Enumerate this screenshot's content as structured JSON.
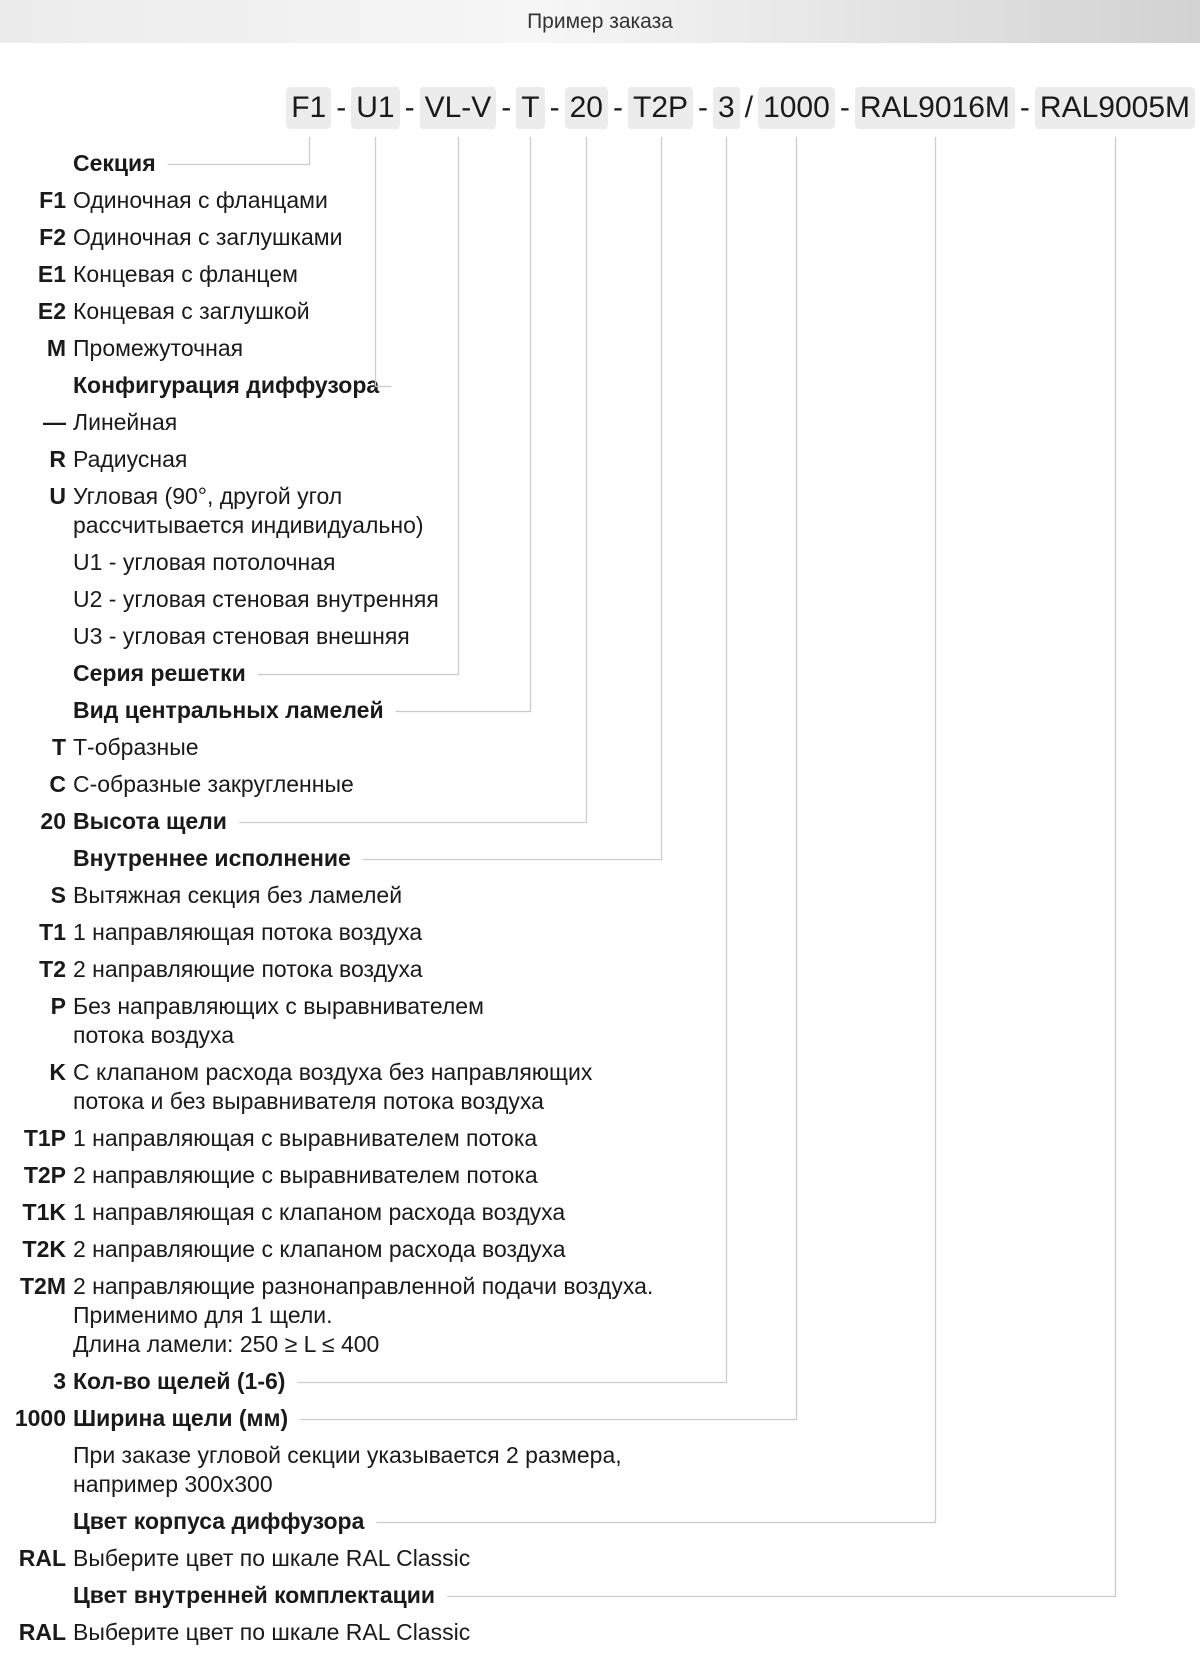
{
  "header": {
    "title": "Пример заказа"
  },
  "code": {
    "segments": [
      "F1",
      "U1",
      "VL-V",
      "T",
      "20",
      "T2P",
      "3",
      "1000",
      "RAL9016M",
      "RAL9005M"
    ],
    "separators": [
      "-",
      "-",
      "-",
      "-",
      "-",
      "-",
      "/",
      "-",
      "-"
    ]
  },
  "items": [
    {
      "code": "",
      "text": "Секция",
      "head": true,
      "link": 0
    },
    {
      "code": "F1",
      "text": "Одиночная с фланцами"
    },
    {
      "code": "F2",
      "text": "Одиночная с заглушками"
    },
    {
      "code": "E1",
      "text": "Концевая с фланцем"
    },
    {
      "code": "E2",
      "text": "Концевая с заглушкой"
    },
    {
      "code": "M",
      "text": "Промежуточная"
    },
    {
      "code": "",
      "text": "Конфигурация диффузора",
      "head": true,
      "link": 1
    },
    {
      "code": "—",
      "text": "Линейная"
    },
    {
      "code": "R",
      "text": "Радиусная"
    },
    {
      "code": "U",
      "text": "Угловая (90°, другой угол\nрассчитывается индивидуально)"
    },
    {
      "code": "",
      "text": "U1 - угловая потолочная"
    },
    {
      "code": "",
      "text": "U2 - угловая стеновая внутренняя"
    },
    {
      "code": "",
      "text": "U3 - угловая стеновая внешняя"
    },
    {
      "code": "",
      "text": "Серия решетки",
      "head": true,
      "link": 2
    },
    {
      "code": "",
      "text": "Вид центральных ламелей",
      "head": true,
      "link": 3
    },
    {
      "code": "T",
      "text": "Т-образные"
    },
    {
      "code": "C",
      "text": "С-образные закругленные"
    },
    {
      "code": "20",
      "text": "Высота щели",
      "head": true,
      "link": 4
    },
    {
      "code": "",
      "text": "Внутреннее исполнение",
      "head": true,
      "link": 5
    },
    {
      "code": "S",
      "text": "Вытяжная секция без ламелей"
    },
    {
      "code": "T1",
      "text": "1 направляющая потока воздуха"
    },
    {
      "code": "T2",
      "text": "2 направляющие потока воздуха"
    },
    {
      "code": "P",
      "text": "Без направляющих с выравнивателем\nпотока воздуха"
    },
    {
      "code": "K",
      "text": "С клапаном расхода воздуха без направляющих\nпотока и без выравнивателя потока воздуха"
    },
    {
      "code": "T1P",
      "text": "1 направляющая с выравнивателем потока"
    },
    {
      "code": "T2P",
      "text": "2 направляющие с выравнивателем потока"
    },
    {
      "code": "T1K",
      "text": "1 направляющая с клапаном расхода воздуха"
    },
    {
      "code": "T2K",
      "text": "2 направляющие с клапаном расхода воздуха"
    },
    {
      "code": "T2M",
      "text": "2 направляющие разнонаправленной подачи воздуха.\nПрименимо для 1 щели.\nДлина ламели: 250 ≥ L ≤ 400"
    },
    {
      "code": "3",
      "text": "Кол-во щелей (1-6)",
      "head": true,
      "link": 6
    },
    {
      "code": "1000",
      "text": "Ширина щели (мм)",
      "head": true,
      "link": 7
    },
    {
      "code": "",
      "text": "При заказе угловой секции указывается 2 размера,\nнапример 300х300"
    },
    {
      "code": "",
      "text": "Цвет корпуса диффузора",
      "head": true,
      "link": 8
    },
    {
      "code": "RAL",
      "text": "Выберите цвет по шкале RAL Classic"
    },
    {
      "code": "",
      "text": "Цвет внутренней комплектации",
      "head": true,
      "link": 9
    },
    {
      "code": "RAL",
      "text": "Выберите цвет по шкале RAL Classic"
    }
  ],
  "colors": {
    "segment_bg": "#ececec",
    "connector": "#cccccc",
    "text": "#1a1a1a"
  }
}
